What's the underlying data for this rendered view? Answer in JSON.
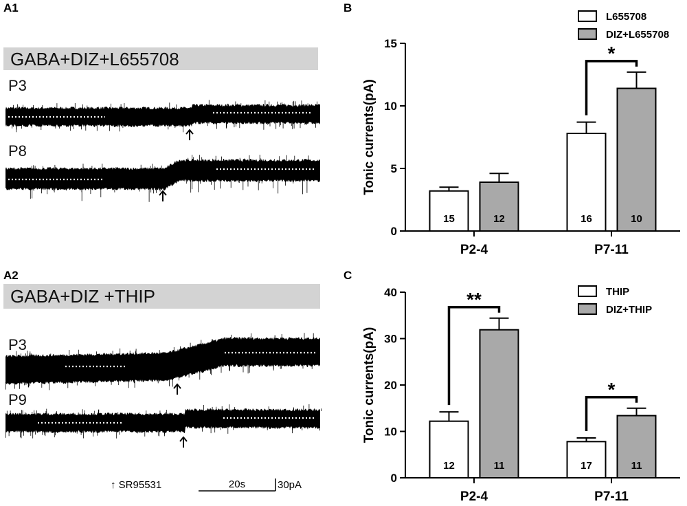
{
  "panels": {
    "a1": {
      "letter": "A1",
      "condition": "GABA+DIZ+L655708",
      "traces": [
        {
          "label": "P3"
        },
        {
          "label": "P8"
        }
      ]
    },
    "a2": {
      "letter": "A2",
      "condition": "GABA+DIZ +THIP",
      "traces": [
        {
          "label": "P3"
        },
        {
          "label": "P9"
        }
      ]
    },
    "scale": {
      "arrow_label": "↑ SR95531",
      "time_label": "20s",
      "amp_label": "30pA"
    }
  },
  "chart_data": [
    {
      "panel": "B",
      "type": "bar",
      "ylabel": "Tonic currents(pA)",
      "ylim": [
        0,
        15
      ],
      "yticks": [
        0,
        5,
        10,
        15
      ],
      "categories": [
        "P2-4",
        "P7-11"
      ],
      "series": [
        {
          "name": "L655708",
          "values": [
            3.2,
            7.8
          ],
          "errors": [
            0.3,
            0.9
          ],
          "n": [
            "15",
            "16"
          ],
          "color": "#ffffff"
        },
        {
          "name": "DIZ+L655708",
          "values": [
            3.9,
            11.4
          ],
          "errors": [
            0.7,
            1.3
          ],
          "n": [
            "12",
            "10"
          ],
          "color": "#a9a9a9"
        }
      ],
      "significance": [
        {
          "category": "P7-11",
          "label": "*"
        }
      ],
      "legend_position": "top-right"
    },
    {
      "panel": "C",
      "type": "bar",
      "ylabel": "Tonic currents(pA)",
      "ylim": [
        0,
        40
      ],
      "yticks": [
        0,
        10,
        20,
        30,
        40
      ],
      "categories": [
        "P2-4",
        "P7-11"
      ],
      "series": [
        {
          "name": "THIP",
          "values": [
            12.2,
            7.8
          ],
          "errors": [
            2.0,
            0.8
          ],
          "n": [
            "12",
            "17"
          ],
          "color": "#ffffff"
        },
        {
          "name": "DIZ+THIP",
          "values": [
            31.9,
            13.4
          ],
          "errors": [
            2.5,
            1.6
          ],
          "n": [
            "11",
            "11"
          ],
          "color": "#a9a9a9"
        }
      ],
      "significance": [
        {
          "category": "P2-4",
          "label": "**"
        },
        {
          "category": "P7-11",
          "label": "*"
        }
      ],
      "legend_position": "top-right"
    }
  ]
}
